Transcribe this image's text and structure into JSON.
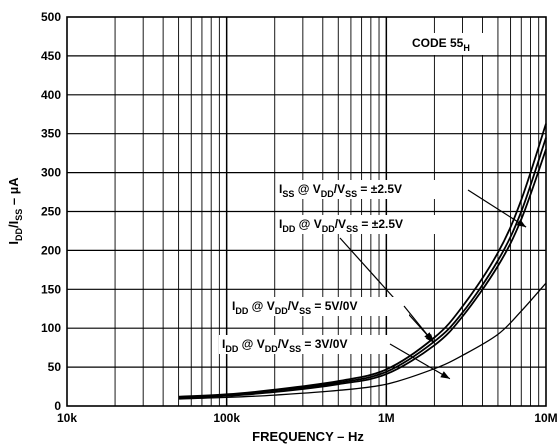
{
  "chart_data": {
    "type": "line",
    "title": "",
    "xlabel": "FREQUENCY – Hz",
    "ylabel": {
      "text": "I",
      "sub1": "DD",
      "sep": "/I",
      "sub2": "SS",
      "rest": " – µA"
    },
    "x_scale": "log",
    "xlim": [
      10000,
      10000000
    ],
    "ylim": [
      0,
      500
    ],
    "grid": true,
    "x_ticks": [
      {
        "value": 10000,
        "label": "10k"
      },
      {
        "value": 100000,
        "label": "100k"
      },
      {
        "value": 1000000,
        "label": "1M"
      },
      {
        "value": 10000000,
        "label": "10M"
      }
    ],
    "y_ticks": [
      "0",
      "50",
      "100",
      "150",
      "200",
      "250",
      "300",
      "350",
      "400",
      "450",
      "500"
    ],
    "code_label": {
      "text": "CODE 55",
      "sub": "H"
    },
    "annotations": [
      {
        "text": "I",
        "sub1": "SS",
        "mid": " @ V",
        "sub2": "DD",
        "mid2": "/V",
        "sub3": "SS",
        "tail": " = ±2.5V"
      },
      {
        "text": "I",
        "sub1": "DD",
        "mid": " @ V",
        "sub2": "DD",
        "mid2": "/V",
        "sub3": "SS",
        "tail": " = ±2.5V"
      },
      {
        "text": "I",
        "sub1": "DD",
        "mid": " @ V",
        "sub2": "DD",
        "mid2": "/V",
        "sub3": "SS",
        "tail": " = 5V/0V"
      },
      {
        "text": "I",
        "sub1": "DD",
        "mid": " @ V",
        "sub2": "DD",
        "mid2": "/V",
        "sub3": "SS",
        "tail": " = 3V/0V"
      }
    ],
    "series": [
      {
        "x": [
          50000,
          100000,
          200000,
          500000,
          1000000,
          2000000,
          3000000,
          5000000,
          7000000,
          10000000
        ],
        "y": [
          12,
          15,
          21,
          32,
          47,
          88,
          128,
          197,
          265,
          363
        ]
      },
      {
        "x": [
          50000,
          100000,
          200000,
          500000,
          1000000,
          2000000,
          3000000,
          5000000,
          7000000,
          10000000
        ],
        "y": [
          11,
          14,
          20,
          30,
          44,
          83,
          120,
          187,
          250,
          345
        ]
      },
      {
        "x": [
          50000,
          100000,
          200000,
          500000,
          1000000,
          2000000,
          3000000,
          5000000,
          7000000,
          10000000
        ],
        "y": [
          10,
          13,
          18,
          28,
          41,
          78,
          115,
          180,
          240,
          330
        ]
      },
      {
        "x": [
          50000,
          100000,
          200000,
          500000,
          1000000,
          2000000,
          3000000,
          5000000,
          7000000,
          10000000
        ],
        "y": [
          9,
          11,
          14,
          20,
          28,
          48,
          65,
          92,
          122,
          158
        ]
      }
    ]
  }
}
